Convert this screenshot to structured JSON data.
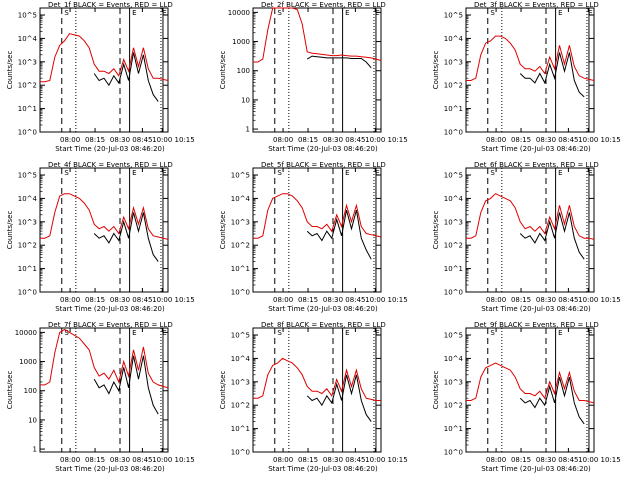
{
  "chart_data": [
    {
      "type": "line",
      "title": "Det_1f BLACK = Events, RED = LLD",
      "ylabel": "Counts/sec",
      "xlabel": "Start Time (20-Jul-03 08:46:20)",
      "ytick_labels": [
        "10^0",
        "10^1",
        "10^2",
        "10^3",
        "10^4",
        "10^5"
      ],
      "ylim_log10": [
        0,
        5.3
      ],
      "xtick_labels": [
        "08:00",
        "08:15",
        "08:30",
        "08:45",
        "10:00",
        "10:15"
      ],
      "markers": [
        "S",
        "E",
        "E"
      ],
      "series": [
        {
          "name": "LLD",
          "color": "#e00000",
          "values": [
            2.15,
            2.15,
            2.2,
            3.2,
            3.7,
            3.9,
            4.2,
            4.15,
            4.1,
            3.9,
            3.6,
            2.9,
            2.6,
            2.6,
            2.5,
            2.7,
            2.4,
            3.1,
            2.6,
            3.6,
            2.8,
            3.6,
            2.7,
            2.3,
            2.3,
            2.25,
            2.2
          ]
        },
        {
          "name": "Events",
          "color": "#000000",
          "values": [
            null,
            null,
            null,
            null,
            null,
            null,
            null,
            null,
            null,
            null,
            null,
            2.5,
            2.2,
            2.3,
            2.0,
            2.4,
            2.1,
            2.9,
            2.2,
            3.4,
            2.5,
            3.3,
            2.2,
            1.6,
            1.3,
            null,
            null
          ]
        }
      ]
    },
    {
      "type": "line",
      "title": "Det_2f BLACK = Events, RED = LLD",
      "ylabel": "Counts/sec",
      "xlabel": "Start Time (20-Jul-03 08:46:20)",
      "ytick_labels": [
        "1",
        "10",
        "100",
        "1000",
        "10000"
      ],
      "ylim_log10": [
        -0.1,
        4.15
      ],
      "xtick_labels": [
        "08:00",
        "08:15",
        "08:30",
        "08:45",
        "10:00",
        "10:15"
      ],
      "markers": [
        "S",
        "E",
        "E"
      ],
      "series": [
        {
          "name": "LLD",
          "color": "#e00000",
          "values": [
            2.3,
            2.3,
            2.4,
            3.4,
            4.2,
            4.3,
            4.4,
            4.35,
            4.2,
            4.1,
            3.6,
            2.65,
            2.6,
            2.58,
            2.56,
            2.54,
            2.52,
            2.52,
            2.54,
            2.52,
            2.5,
            2.5,
            2.48,
            2.46,
            2.44,
            2.4,
            2.35
          ]
        },
        {
          "name": "Events",
          "color": "#000000",
          "values": [
            null,
            null,
            null,
            null,
            null,
            null,
            null,
            null,
            null,
            null,
            null,
            2.4,
            2.5,
            2.48,
            2.46,
            2.44,
            2.44,
            2.44,
            2.44,
            2.44,
            2.42,
            2.42,
            2.42,
            2.3,
            2.1,
            null,
            null
          ]
        }
      ]
    },
    {
      "type": "line",
      "title": "Det_3f BLACK = Events, RED = LLD",
      "ylabel": "Counts/sec",
      "xlabel": "Start Time (20-Jul-03 08:46:20)",
      "ytick_labels": [
        "10^0",
        "10^1",
        "10^2",
        "10^3",
        "10^4",
        "10^5"
      ],
      "ylim_log10": [
        0,
        5.3
      ],
      "xtick_labels": [
        "08:00",
        "08:15",
        "08:30",
        "08:45",
        "10:00",
        "10:15"
      ],
      "markers": [
        "S",
        "E",
        "E"
      ],
      "series": [
        {
          "name": "LLD",
          "color": "#e00000",
          "values": [
            2.2,
            2.2,
            2.3,
            3.3,
            3.8,
            3.9,
            4.1,
            4.1,
            4.0,
            3.8,
            3.5,
            2.9,
            2.7,
            2.7,
            2.6,
            2.8,
            2.5,
            3.2,
            2.7,
            3.7,
            2.9,
            3.7,
            2.8,
            2.4,
            2.3,
            2.25,
            2.2
          ]
        },
        {
          "name": "Events",
          "color": "#000000",
          "values": [
            null,
            null,
            null,
            null,
            null,
            null,
            null,
            null,
            null,
            null,
            null,
            2.5,
            2.3,
            2.3,
            2.1,
            2.5,
            2.1,
            2.9,
            2.3,
            3.4,
            2.6,
            3.4,
            2.2,
            1.7,
            1.5,
            null,
            null
          ]
        }
      ]
    },
    {
      "type": "line",
      "title": "Det_4f BLACK = Events, RED = LLD",
      "ylabel": "Counts/sec",
      "xlabel": "Start Time (20-Jul-03 08:46:20)",
      "ytick_labels": [
        "10^0",
        "10^1",
        "10^2",
        "10^3",
        "10^4",
        "10^5"
      ],
      "ylim_log10": [
        0,
        5.3
      ],
      "xtick_labels": [
        "08:00",
        "08:15",
        "08:30",
        "08:45",
        "10:00",
        "10:15"
      ],
      "markers": [
        "S",
        "E",
        "E"
      ],
      "series": [
        {
          "name": "LLD",
          "color": "#e00000",
          "values": [
            2.3,
            2.3,
            2.4,
            3.4,
            4.1,
            4.2,
            4.2,
            4.1,
            4.0,
            3.8,
            3.5,
            2.9,
            2.7,
            2.8,
            2.6,
            2.8,
            2.5,
            3.2,
            2.7,
            3.6,
            2.9,
            3.6,
            2.7,
            2.4,
            2.35,
            2.3,
            2.25
          ]
        },
        {
          "name": "Events",
          "color": "#000000",
          "values": [
            null,
            null,
            null,
            null,
            null,
            null,
            null,
            null,
            null,
            null,
            null,
            2.5,
            2.3,
            2.4,
            2.1,
            2.5,
            2.2,
            3.0,
            2.3,
            3.4,
            2.6,
            3.4,
            2.3,
            1.6,
            1.3,
            null,
            null
          ]
        }
      ]
    },
    {
      "type": "line",
      "title": "Det_5f BLACK = Events, RED = LLD",
      "ylabel": "Counts/sec",
      "xlabel": "Start Time (20-Jul-03 08:46:20)",
      "ytick_labels": [
        "10^0",
        "10^1",
        "10^2",
        "10^3",
        "10^4",
        "10^5"
      ],
      "ylim_log10": [
        0,
        5.3
      ],
      "xtick_labels": [
        "08:00",
        "08:15",
        "08:30",
        "08:45",
        "10:00",
        "10:15"
      ],
      "markers": [
        "S",
        "E",
        "E"
      ],
      "series": [
        {
          "name": "LLD",
          "color": "#e00000",
          "values": [
            2.3,
            2.3,
            2.4,
            3.5,
            4.0,
            4.1,
            4.2,
            4.2,
            4.1,
            3.9,
            3.6,
            3.0,
            2.8,
            2.8,
            2.7,
            2.9,
            2.6,
            3.3,
            2.8,
            3.7,
            3.0,
            3.7,
            2.8,
            2.5,
            2.45,
            2.4,
            2.35
          ]
        },
        {
          "name": "Events",
          "color": "#000000",
          "values": [
            null,
            null,
            null,
            null,
            null,
            null,
            null,
            null,
            null,
            null,
            null,
            2.6,
            2.4,
            2.5,
            2.2,
            2.6,
            2.3,
            3.1,
            2.4,
            3.5,
            2.7,
            3.5,
            2.3,
            1.8,
            1.4,
            null,
            null
          ]
        }
      ]
    },
    {
      "type": "line",
      "title": "Det_6f BLACK = Events, RED = LLD",
      "ylabel": "Counts/sec",
      "xlabel": "Start Time (20-Jul-03 08:46:20)",
      "ytick_labels": [
        "10^0",
        "10^1",
        "10^2",
        "10^3",
        "10^4",
        "10^5"
      ],
      "ylim_log10": [
        0,
        5.3
      ],
      "xtick_labels": [
        "08:00",
        "08:15",
        "08:30",
        "08:45",
        "10:00",
        "10:15"
      ],
      "markers": [
        "S",
        "E",
        "E"
      ],
      "series": [
        {
          "name": "LLD",
          "color": "#e00000",
          "values": [
            2.3,
            2.3,
            2.4,
            3.4,
            3.9,
            4.0,
            4.2,
            4.1,
            4.0,
            3.9,
            3.6,
            3.0,
            2.7,
            2.8,
            2.6,
            2.8,
            2.5,
            3.2,
            2.7,
            3.7,
            2.9,
            3.7,
            2.8,
            2.4,
            2.3,
            2.3,
            2.25
          ]
        },
        {
          "name": "Events",
          "color": "#000000",
          "values": [
            null,
            null,
            null,
            null,
            null,
            null,
            null,
            null,
            null,
            null,
            null,
            2.5,
            2.3,
            2.4,
            2.1,
            2.5,
            2.2,
            3.0,
            2.3,
            3.4,
            2.6,
            3.4,
            2.3,
            1.7,
            1.4,
            null,
            null
          ]
        }
      ]
    },
    {
      "type": "line",
      "title": "Det_7f BLACK = Events, RED = LLD",
      "ylabel": "Counts/sec",
      "xlabel": "Start Time (20-Jul-03 08:46:20)",
      "ytick_labels": [
        "1",
        "10",
        "100",
        "1000",
        "10000"
      ],
      "ylim_log10": [
        -0.1,
        4.15
      ],
      "xtick_labels": [
        "08:00",
        "08:15",
        "08:30",
        "08:45",
        "10:00",
        "10:15"
      ],
      "markers": [
        "S",
        "E",
        "E"
      ],
      "series": [
        {
          "name": "LLD",
          "color": "#e00000",
          "values": [
            2.2,
            2.2,
            2.3,
            3.3,
            4.0,
            4.1,
            4.0,
            3.9,
            3.8,
            3.6,
            3.4,
            2.8,
            2.5,
            2.6,
            2.4,
            2.7,
            2.3,
            3.0,
            2.5,
            3.4,
            2.7,
            3.5,
            2.6,
            2.3,
            2.2,
            2.15,
            2.1
          ]
        },
        {
          "name": "Events",
          "color": "#000000",
          "values": [
            null,
            null,
            null,
            null,
            null,
            null,
            null,
            null,
            null,
            null,
            null,
            2.4,
            2.1,
            2.2,
            1.9,
            2.3,
            2.0,
            2.8,
            2.1,
            3.2,
            2.4,
            3.2,
            2.1,
            1.5,
            1.2,
            null,
            null
          ]
        }
      ]
    },
    {
      "type": "line",
      "title": "Det_8f BLACK = Events, RED = LLD",
      "ylabel": "Counts/sec",
      "xlabel": "Start Time (20-Jul-03 08:46:20)",
      "ytick_labels": [
        "10^0",
        "10^1",
        "10^2",
        "10^3",
        "10^4",
        "10^5"
      ],
      "ylim_log10": [
        0,
        5.3
      ],
      "xtick_labels": [
        "08:00",
        "08:15",
        "08:30",
        "08:45",
        "10:00",
        "10:15"
      ],
      "markers": [
        "S",
        "E",
        "E"
      ],
      "series": [
        {
          "name": "LLD",
          "color": "#e00000",
          "values": [
            2.3,
            2.3,
            2.4,
            3.3,
            3.7,
            3.8,
            4.0,
            3.9,
            3.8,
            3.6,
            3.3,
            2.8,
            2.6,
            2.6,
            2.5,
            2.7,
            2.4,
            3.1,
            2.6,
            3.5,
            2.8,
            3.5,
            2.7,
            2.3,
            2.25,
            2.2,
            2.2
          ]
        },
        {
          "name": "Events",
          "color": "#000000",
          "values": [
            null,
            null,
            null,
            null,
            null,
            null,
            null,
            null,
            null,
            null,
            null,
            2.4,
            2.2,
            2.3,
            2.0,
            2.4,
            2.1,
            2.9,
            2.2,
            3.3,
            2.5,
            3.3,
            2.2,
            1.6,
            1.3,
            null,
            null
          ]
        }
      ]
    },
    {
      "type": "line",
      "title": "Det_9f BLACK = Events, RED = LLD",
      "ylabel": "Counts/sec",
      "xlabel": "Start Time (20-Jul-03 08:46:20)",
      "ytick_labels": [
        "10^0",
        "10^1",
        "10^2",
        "10^3",
        "10^4",
        "10^5"
      ],
      "ylim_log10": [
        0,
        5.3
      ],
      "xtick_labels": [
        "08:00",
        "08:15",
        "08:30",
        "08:45",
        "10:00",
        "10:15"
      ],
      "markers": [
        "S",
        "E",
        "E"
      ],
      "series": [
        {
          "name": "LLD",
          "color": "#e00000",
          "values": [
            2.2,
            2.2,
            2.3,
            3.2,
            3.6,
            3.7,
            3.8,
            3.7,
            3.6,
            3.5,
            3.2,
            2.7,
            2.5,
            2.5,
            2.4,
            2.6,
            2.3,
            3.0,
            2.5,
            3.4,
            2.7,
            3.4,
            2.6,
            2.2,
            2.2,
            2.15,
            2.1
          ]
        },
        {
          "name": "Events",
          "color": "#000000",
          "values": [
            null,
            null,
            null,
            null,
            null,
            null,
            null,
            null,
            null,
            null,
            null,
            2.3,
            2.1,
            2.2,
            1.9,
            2.3,
            2.0,
            2.8,
            2.1,
            3.2,
            2.4,
            3.2,
            2.1,
            1.5,
            1.2,
            null,
            null
          ]
        }
      ]
    }
  ]
}
